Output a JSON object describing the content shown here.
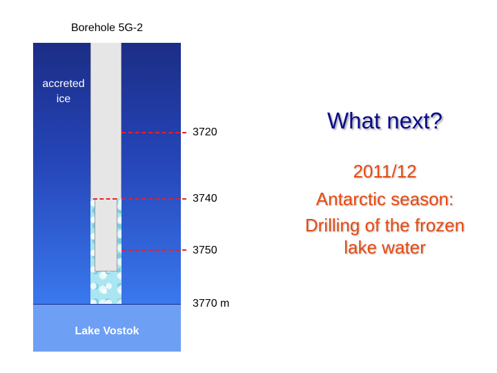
{
  "diagram": {
    "title": "Borehole 5G-2",
    "ice_label_line1": "accreted",
    "ice_label_line2": "ice",
    "lake_label": "Lake Vostok",
    "depths": [
      "3720",
      "3740",
      "3750",
      "3770 m"
    ],
    "colors": {
      "ice_top": "#1b2d86",
      "ice_bottom": "#3a78ee",
      "lake": "#6d9ff5",
      "marker": "#e8202a",
      "borehole": "#e6e6e6",
      "frozen_water": "#a9e6f2"
    }
  },
  "text": {
    "heading": "What next?",
    "line1": "2011/12",
    "line2": "Antarctic season:",
    "line3": "Drilling of the frozen",
    "line4": "lake water",
    "heading_color": "#0a0a8c",
    "body_color": "#e84a10"
  }
}
